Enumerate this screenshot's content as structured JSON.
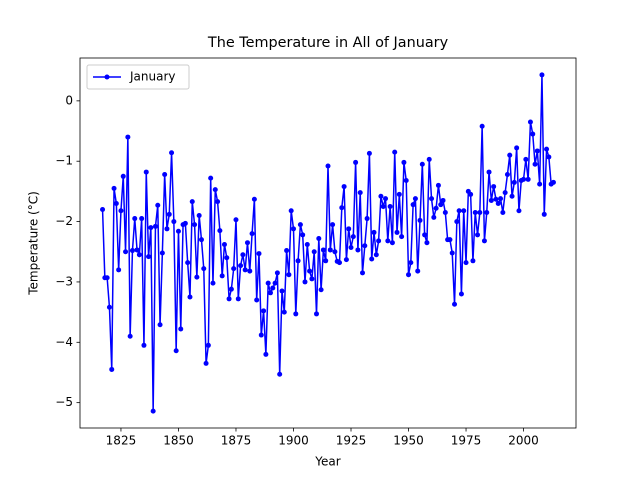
{
  "chart_data": {
    "type": "line",
    "title": "The Temperature in All of January",
    "x_label": "Year",
    "y_label": "Temperature (°C)",
    "x": [
      1817,
      1818,
      1819,
      1820,
      1821,
      1822,
      1823,
      1824,
      1825,
      1826,
      1827,
      1828,
      1829,
      1830,
      1831,
      1832,
      1833,
      1834,
      1835,
      1836,
      1837,
      1838,
      1839,
      1840,
      1841,
      1842,
      1843,
      1844,
      1845,
      1846,
      1847,
      1848,
      1849,
      1850,
      1851,
      1852,
      1853,
      1854,
      1855,
      1856,
      1857,
      1858,
      1859,
      1860,
      1861,
      1862,
      1863,
      1864,
      1865,
      1866,
      1867,
      1868,
      1869,
      1870,
      1871,
      1872,
      1873,
      1874,
      1875,
      1876,
      1877,
      1878,
      1879,
      1880,
      1881,
      1882,
      1883,
      1884,
      1885,
      1886,
      1887,
      1888,
      1889,
      1890,
      1891,
      1892,
      1893,
      1894,
      1895,
      1896,
      1897,
      1898,
      1899,
      1900,
      1901,
      1902,
      1903,
      1904,
      1905,
      1906,
      1907,
      1908,
      1909,
      1910,
      1911,
      1912,
      1913,
      1914,
      1915,
      1916,
      1917,
      1918,
      1919,
      1920,
      1921,
      1922,
      1923,
      1924,
      1925,
      1926,
      1927,
      1928,
      1929,
      1930,
      1931,
      1932,
      1933,
      1934,
      1935,
      1936,
      1937,
      1938,
      1939,
      1940,
      1941,
      1942,
      1943,
      1944,
      1945,
      1946,
      1947,
      1948,
      1949,
      1950,
      1951,
      1952,
      1953,
      1954,
      1955,
      1956,
      1957,
      1958,
      1959,
      1960,
      1961,
      1962,
      1963,
      1964,
      1965,
      1966,
      1967,
      1968,
      1969,
      1970,
      1971,
      1972,
      1973,
      1974,
      1975,
      1976,
      1977,
      1978,
      1979,
      1980,
      1981,
      1982,
      1983,
      1984,
      1985,
      1986,
      1987,
      1988,
      1989,
      1990,
      1991,
      1992,
      1993,
      1994,
      1995,
      1996,
      1997,
      1998,
      1999,
      2000,
      2001,
      2002,
      2003,
      2004,
      2005,
      2006,
      2007,
      2008,
      2009,
      2010,
      2011,
      2012,
      2013
    ],
    "series": [
      {
        "name": "January",
        "color": "#0000ff",
        "values": [
          -1.8,
          -2.93,
          -2.93,
          -3.42,
          -4.45,
          -1.45,
          -1.7,
          -2.8,
          -1.82,
          -1.25,
          -2.5,
          -0.6,
          -3.9,
          -2.48,
          -1.95,
          -2.47,
          -2.55,
          -1.95,
          -4.05,
          -1.18,
          -2.58,
          -2.1,
          -5.14,
          -2.08,
          -1.73,
          -3.71,
          -2.52,
          -1.22,
          -2.12,
          -1.88,
          -0.86,
          -2.0,
          -4.14,
          -2.16,
          -3.78,
          -2.05,
          -2.03,
          -2.68,
          -3.25,
          -1.67,
          -2.05,
          -2.92,
          -1.9,
          -2.3,
          -2.78,
          -4.35,
          -4.05,
          -1.28,
          -3.02,
          -1.47,
          -1.67,
          -2.15,
          -2.9,
          -2.38,
          -2.6,
          -3.28,
          -3.12,
          -2.78,
          -1.97,
          -3.28,
          -2.73,
          -2.55,
          -2.8,
          -2.35,
          -2.82,
          -2.2,
          -1.63,
          -3.3,
          -2.53,
          -3.88,
          -3.48,
          -4.2,
          -3.02,
          -3.18,
          -3.1,
          -3.02,
          -2.85,
          -4.53,
          -3.15,
          -3.5,
          -2.48,
          -2.88,
          -1.82,
          -2.12,
          -3.53,
          -2.65,
          -2.05,
          -2.22,
          -3.0,
          -2.38,
          -2.82,
          -2.95,
          -2.5,
          -3.53,
          -2.28,
          -3.13,
          -2.47,
          -2.65,
          -1.08,
          -2.47,
          -2.05,
          -2.5,
          -2.66,
          -2.68,
          -1.77,
          -1.42,
          -2.63,
          -2.12,
          -2.43,
          -2.25,
          -1.02,
          -2.47,
          -1.52,
          -2.85,
          -2.4,
          -1.95,
          -0.87,
          -2.62,
          -2.18,
          -2.55,
          -2.32,
          -1.58,
          -1.75,
          -1.62,
          -2.32,
          -1.75,
          -2.35,
          -0.85,
          -2.18,
          -1.55,
          -2.25,
          -1.02,
          -1.32,
          -2.88,
          -2.68,
          -1.72,
          -1.62,
          -2.82,
          -1.98,
          -1.05,
          -2.22,
          -2.35,
          -0.97,
          -1.62,
          -1.93,
          -1.78,
          -1.4,
          -1.72,
          -1.65,
          -1.85,
          -2.3,
          -2.3,
          -2.52,
          -3.37,
          -2.0,
          -1.82,
          -3.2,
          -1.82,
          -2.68,
          -1.5,
          -1.55,
          -2.65,
          -1.85,
          -2.22,
          -1.85,
          -0.42,
          -2.32,
          -1.85,
          -1.18,
          -1.65,
          -1.42,
          -1.63,
          -1.7,
          -1.62,
          -1.85,
          -1.52,
          -1.22,
          -0.9,
          -1.58,
          -1.35,
          -0.78,
          -1.82,
          -1.32,
          -1.3,
          -0.97,
          -1.3,
          -0.35,
          -0.55,
          -1.05,
          -0.83,
          -1.38,
          0.43,
          -1.88,
          -0.8,
          -0.93,
          -1.38,
          -1.35
        ]
      }
    ],
    "xlim": [
      1807.2,
      2022.8
    ],
    "ylim": [
      -5.42,
      0.71
    ],
    "xticks": [
      1825,
      1850,
      1875,
      1900,
      1925,
      1950,
      1975,
      2000
    ],
    "yticks": [
      {
        "value": -5,
        "label": "−5"
      },
      {
        "value": -4,
        "label": "−4"
      },
      {
        "value": -3,
        "label": "−3"
      },
      {
        "value": -2,
        "label": "−2"
      },
      {
        "value": -1,
        "label": "−1"
      },
      0
    ],
    "legend": "upper left"
  }
}
